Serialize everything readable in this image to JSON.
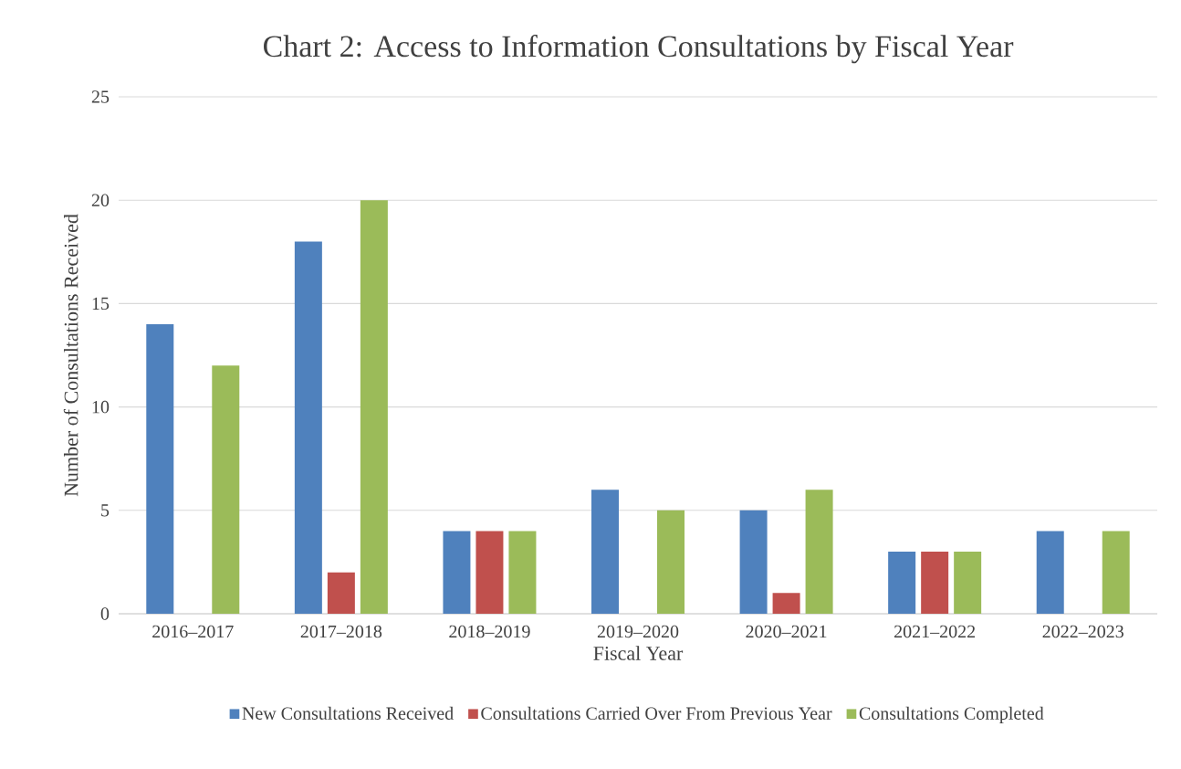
{
  "chart_data": {
    "type": "bar",
    "title": "Chart 2: Access to Information Consultations by Fiscal Year",
    "xlabel": "Fiscal Year",
    "ylabel": "Number of Consultations Received",
    "categories": [
      "2016–2017",
      "2017–2018",
      "2018–2019",
      "2019–2020",
      "2020–2021",
      "2021–2022",
      "2022–2023"
    ],
    "series": [
      {
        "name": "New Consultations Received",
        "color": "#4f81bd",
        "values": [
          14,
          18,
          4,
          6,
          5,
          3,
          4
        ]
      },
      {
        "name": "Consultations Carried Over From Previous Year",
        "color": "#c0504d",
        "values": [
          0,
          2,
          4,
          0,
          1,
          3,
          0
        ]
      },
      {
        "name": "Consultations Completed",
        "color": "#9bbb59",
        "values": [
          12,
          20,
          4,
          5,
          6,
          3,
          4
        ]
      }
    ],
    "ylim": [
      0,
      25
    ],
    "yticks": [
      0,
      5,
      10,
      15,
      20,
      25
    ],
    "grid": "y",
    "legend": "bottom"
  }
}
